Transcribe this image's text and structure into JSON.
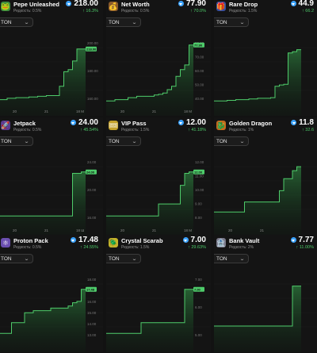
{
  "ton_icon": "ton-coin-icon",
  "accent": "#4ecb6a",
  "cards": [
    {
      "name": "Pepe Unleashed",
      "rarity": "Редкость: 0.5%",
      "price": "218.00",
      "change": "↑ 16.3%",
      "icon": "frog-icon",
      "icon_color": "#3f8f3f",
      "icon_glyph": "🐸",
      "select": "TON",
      "y_labels": [
        "200.00",
        "180.00",
        "160.00"
      ],
      "x_labels": [
        "20",
        "21",
        "18 M"
      ],
      "tag": "218.00",
      "series": [
        0.1,
        0.1,
        0.12,
        0.12,
        0.13,
        0.13,
        0.13,
        0.14,
        0.14,
        0.15,
        0.15,
        0.16,
        0.16,
        0.16,
        0.3,
        0.52,
        0.55,
        0.68,
        0.86,
        0.86
      ]
    },
    {
      "name": "Net Worth",
      "rarity": "Редкость: 0.5%",
      "price": "77.90",
      "change": "↑ 70.0%",
      "icon": "money-bag-icon",
      "icon_color": "#8a5a2b",
      "icon_glyph": "💰",
      "select": "TON",
      "y_labels": [
        "80.00",
        "70.00",
        "60.00",
        "50.00",
        "40.00"
      ],
      "x_labels": [
        "20",
        "21",
        "18 M"
      ],
      "tag": "77.90",
      "series": [
        0.08,
        0.08,
        0.1,
        0.1,
        0.1,
        0.13,
        0.13,
        0.15,
        0.15,
        0.15,
        0.15,
        0.17,
        0.18,
        0.2,
        0.25,
        0.3,
        0.45,
        0.55,
        0.62,
        0.92
      ]
    },
    {
      "name": "Rare Drop",
      "rarity": "Редкость: 1.5%",
      "price": "44.9",
      "change": "↑ 66.2",
      "icon": "gift-box-icon",
      "icon_color": "#3a4fa0",
      "icon_glyph": "🎁",
      "select": "TON",
      "y_labels": [],
      "x_labels": [],
      "tag": "",
      "series": [
        0.08,
        0.08,
        0.08,
        0.09,
        0.09,
        0.1,
        0.1,
        0.1,
        0.11,
        0.11,
        0.12,
        0.12,
        0.12,
        0.13,
        0.3,
        0.32,
        0.33,
        0.8,
        0.82,
        0.85
      ]
    },
    {
      "name": "Jetpack",
      "rarity": "Редкость: 0.5%",
      "price": "24.00",
      "change": "↑ 45.54%",
      "icon": "jetpack-icon",
      "icon_color": "#5b3a8f",
      "icon_glyph": "🚀",
      "select": "TON",
      "y_labels": [
        "24.00",
        "20.00",
        "16.00"
      ],
      "x_labels": [
        "20",
        "21",
        "18 Ш"
      ],
      "tag": "24.00",
      "series": [
        0.14,
        0.14,
        0.14,
        0.14,
        0.14,
        0.14,
        0.14,
        0.14,
        0.14,
        0.14,
        0.14,
        0.14,
        0.14,
        0.14,
        0.14,
        0.14,
        0.14,
        0.78,
        0.78,
        0.8
      ]
    },
    {
      "name": "VIP Pass",
      "rarity": "Редкость: 1.5%",
      "price": "12.00",
      "change": "↑ 41.18%",
      "icon": "ticket-icon",
      "icon_color": "#c4a12a",
      "icon_glyph": "🎟",
      "select": "TON",
      "y_labels": [
        "12.00",
        "11.00",
        "10.00",
        "9.00",
        "8.00"
      ],
      "x_labels": [
        "20",
        "21",
        "18 M"
      ],
      "tag": "12.00",
      "series": [
        0.14,
        0.14,
        0.14,
        0.14,
        0.14,
        0.14,
        0.14,
        0.14,
        0.14,
        0.14,
        0.14,
        0.14,
        0.32,
        0.32,
        0.32,
        0.32,
        0.32,
        0.6,
        0.78,
        0.8
      ]
    },
    {
      "name": "Golden Dragon",
      "rarity": "Редкость: 1%",
      "price": "11.8",
      "change": "↑ 32.6",
      "icon": "dragon-icon",
      "icon_color": "#c46a1e",
      "icon_glyph": "🐉",
      "select": "TON",
      "y_labels": [],
      "x_labels": [
        "20",
        "21"
      ],
      "tag": "",
      "series": [
        0.2,
        0.2,
        0.2,
        0.2,
        0.2,
        0.2,
        0.2,
        0.35,
        0.35,
        0.35,
        0.35,
        0.35,
        0.35,
        0.35,
        0.35,
        0.52,
        0.7,
        0.7,
        0.82,
        0.88
      ]
    },
    {
      "name": "Proton Pack",
      "rarity": "Редкость: 0.5%",
      "price": "17.48",
      "change": "↑ 24.55%",
      "icon": "proton-pack-icon",
      "icon_color": "#6b4fb0",
      "icon_glyph": "⚛",
      "select": "TON",
      "y_labels": [
        "18.00",
        "17.00",
        "16.00",
        "15.00",
        "14.00",
        "13.00"
      ],
      "x_labels": [],
      "tag": "17.48",
      "series": [
        0.14,
        0.14,
        0.14,
        0.3,
        0.3,
        0.3,
        0.45,
        0.45,
        0.48,
        0.48,
        0.48,
        0.48,
        0.52,
        0.52,
        0.52,
        0.52,
        0.55,
        0.6,
        0.62,
        0.8
      ]
    },
    {
      "name": "Crystal Scarab",
      "rarity": "Редкость: 1.5%",
      "price": "7.00",
      "change": "↑ 29.63%",
      "icon": "scarab-icon",
      "icon_color": "#c4b42a",
      "icon_glyph": "🪲",
      "select": "TON",
      "y_labels": [
        "7.00",
        "6.00",
        "5.00"
      ],
      "x_labels": [],
      "tag": "7.00",
      "series": [
        0.14,
        0.14,
        0.14,
        0.14,
        0.14,
        0.14,
        0.14,
        0.14,
        0.3,
        0.3,
        0.3,
        0.3,
        0.3,
        0.3,
        0.3,
        0.3,
        0.3,
        0.3,
        0.8,
        0.8
      ]
    },
    {
      "name": "Bank Vault",
      "rarity": "Редкость: 2%",
      "price": "7.77",
      "change": "↑ 11.00%",
      "icon": "vault-icon",
      "icon_color": "#7a7a8a",
      "icon_glyph": "🏦",
      "select": "TON",
      "y_labels": [],
      "x_labels": [],
      "tag": "",
      "series": [
        0.25,
        0.25,
        0.25,
        0.25,
        0.25,
        0.25,
        0.25,
        0.25,
        0.25,
        0.25,
        0.25,
        0.25,
        0.25,
        0.25,
        0.25,
        0.25,
        0.25,
        0.25,
        0.85,
        0.85
      ]
    }
  ]
}
